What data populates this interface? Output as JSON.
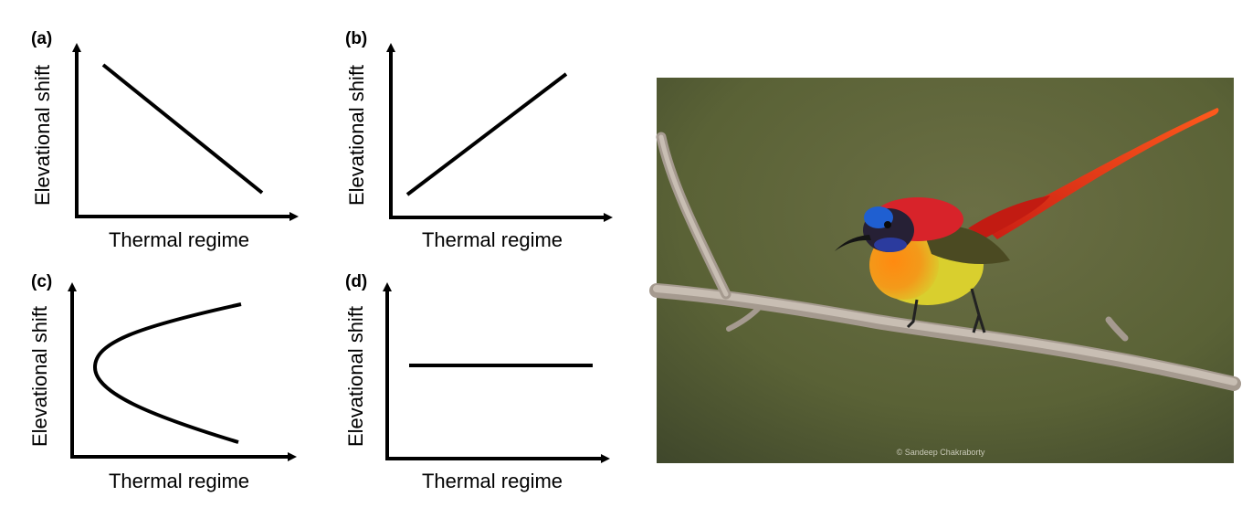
{
  "panels": [
    {
      "label": "(a)",
      "ylabel": "Elevational shift",
      "xlabel": "Thermal regime",
      "pattern": "decreasing"
    },
    {
      "label": "(b)",
      "ylabel": "Elevational shift",
      "xlabel": "Thermal regime",
      "pattern": "increasing"
    },
    {
      "label": "(c)",
      "ylabel": "Elevational shift",
      "xlabel": "Thermal regime",
      "pattern": "divergent"
    },
    {
      "label": "(d)",
      "ylabel": "Elevational shift",
      "xlabel": "Thermal regime",
      "pattern": "constant"
    }
  ],
  "photo": {
    "credit": "© Sandeep Chakraborty",
    "subject": "sunbird-on-branch",
    "colors": {
      "background": "#5a6236",
      "cap": "#d8232a",
      "forehead": "#1f5fd1",
      "breast": "#f07a12",
      "belly": "#d9cf2e",
      "wing": "#4b4a22",
      "tail": "#e8351c",
      "branch": "#b7aca1"
    }
  }
}
